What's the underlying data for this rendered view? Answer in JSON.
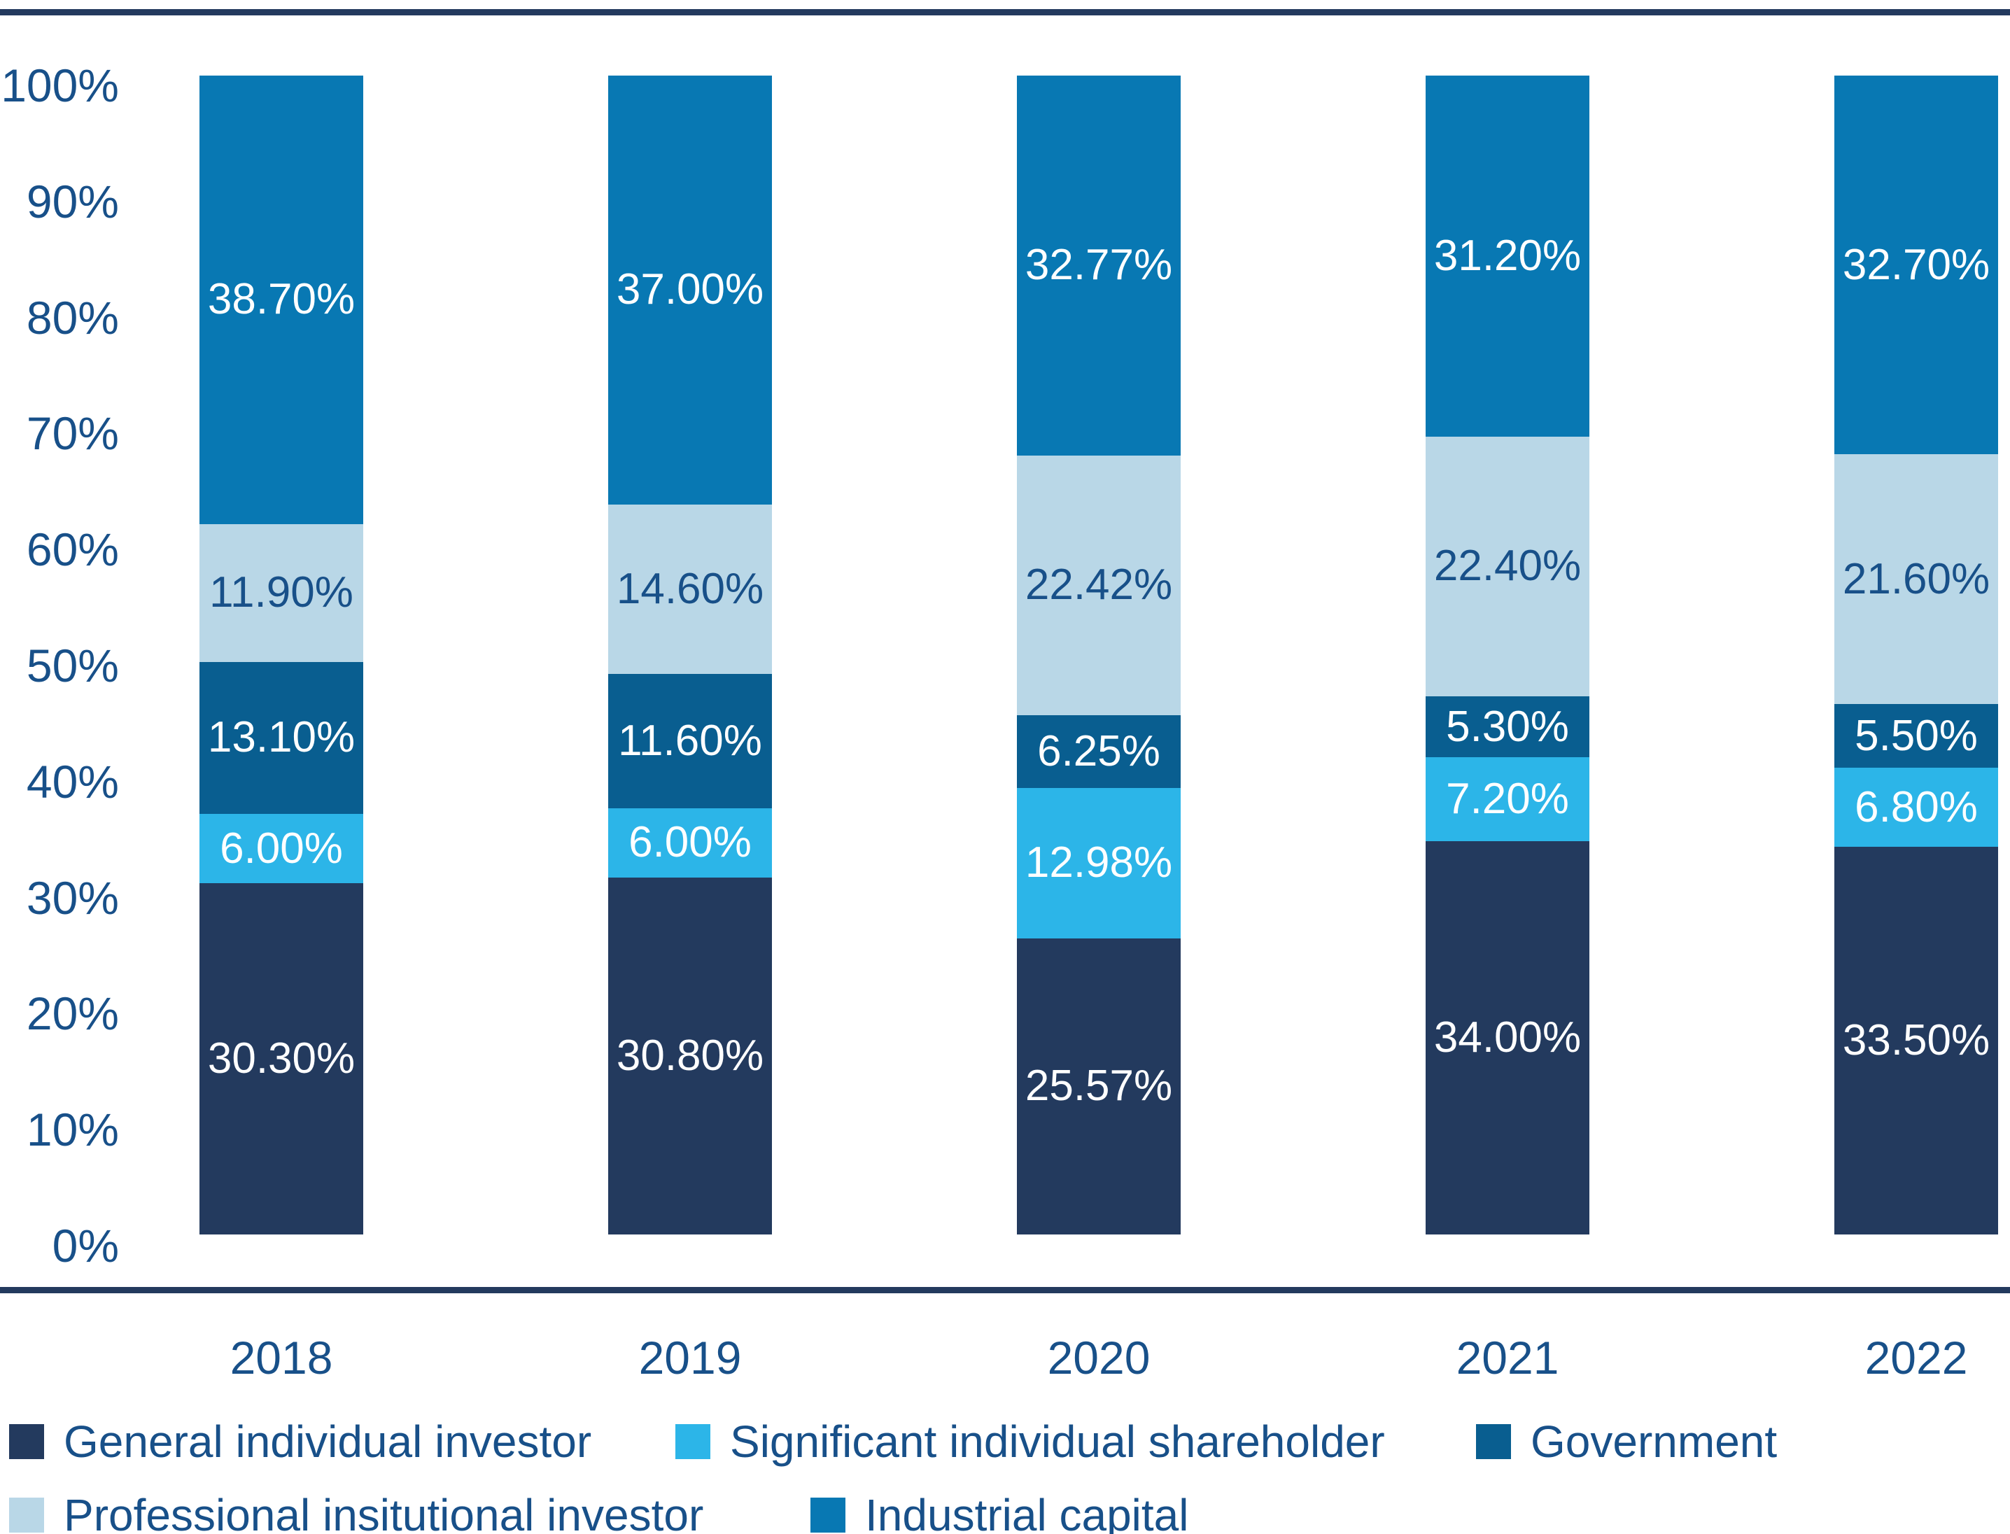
{
  "chart_data": {
    "type": "bar",
    "stacked": true,
    "percent_stacked": true,
    "title": "",
    "xlabel": "",
    "ylabel": "",
    "categories": [
      "2018",
      "2019",
      "2020",
      "2021",
      "2022"
    ],
    "series": [
      {
        "name": "General individual investor",
        "color": "#233a5e",
        "label_color": "#ffffff",
        "values": [
          30.3,
          30.8,
          25.57,
          34.0,
          33.5
        ],
        "labels": [
          "30.30%",
          "30.80%",
          "25.57%",
          "34.00%",
          "33.50%"
        ]
      },
      {
        "name": "Significant individual shareholder",
        "color": "#2cb5e8",
        "label_color": "#ffffff",
        "values": [
          6.0,
          6.0,
          12.98,
          7.2,
          6.8
        ],
        "labels": [
          "6.00%",
          "6.00%",
          "12.98%",
          "7.20%",
          "6.80%"
        ]
      },
      {
        "name": "Government",
        "color": "#095e90",
        "label_color": "#ffffff",
        "values": [
          13.1,
          11.6,
          6.25,
          5.3,
          5.5
        ],
        "labels": [
          "13.10%",
          "11.60%",
          "6.25%",
          "5.30%",
          "5.50%"
        ]
      },
      {
        "name": "Professional insitutional investor",
        "color": "#b9d7e7",
        "label_color": "#185089",
        "values": [
          11.9,
          14.6,
          22.42,
          22.4,
          21.6
        ],
        "labels": [
          "11.90%",
          "14.60%",
          "22.42%",
          "22.40%",
          "21.60%"
        ]
      },
      {
        "name": "Industrial capital",
        "color": "#0878b3",
        "label_color": "#ffffff",
        "values": [
          38.7,
          37.0,
          32.77,
          31.2,
          32.7
        ],
        "labels": [
          "38.70%",
          "37.00%",
          "32.77%",
          "31.20%",
          "32.70%"
        ]
      }
    ],
    "y_axis": {
      "min": 0,
      "max": 100,
      "ticks": [
        "100%",
        "90%",
        "80%",
        "70%",
        "60%",
        "50%",
        "40%",
        "30%",
        "20%",
        "10%",
        "0%"
      ],
      "grid": false
    },
    "legend": {
      "position": "bottom",
      "rows": [
        [
          0,
          1,
          2
        ],
        [
          3,
          4
        ]
      ]
    }
  },
  "colors": {
    "axis_text": "#185089",
    "rule": "#233a5e",
    "background": "#ffffff"
  }
}
